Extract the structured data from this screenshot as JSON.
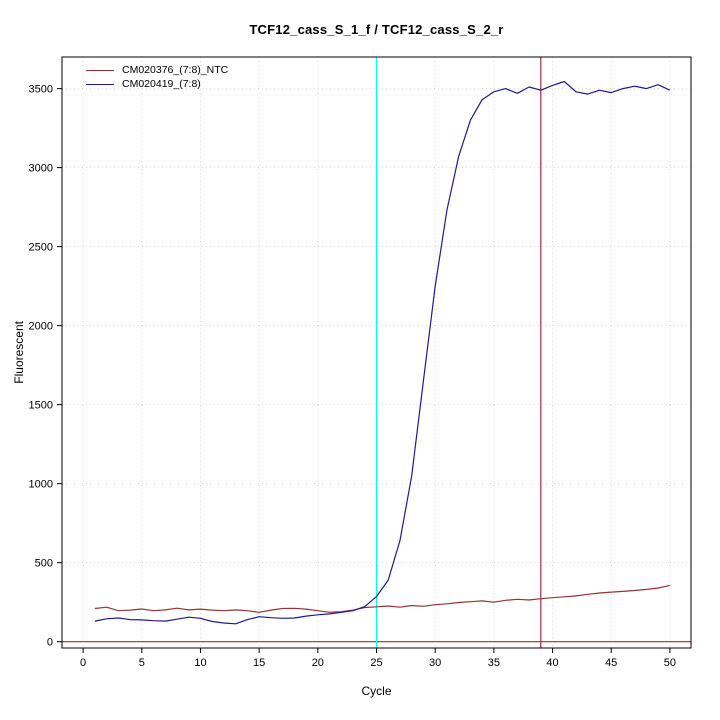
{
  "chart_data": {
    "type": "line",
    "title": "TCF12_cass_S_1_f / TCF12_cass_S_2_r",
    "xlabel": "Cycle",
    "ylabel": "Fluorescent",
    "x": [
      1,
      2,
      3,
      4,
      5,
      6,
      7,
      8,
      9,
      10,
      11,
      12,
      13,
      14,
      15,
      16,
      17,
      18,
      19,
      20,
      21,
      22,
      23,
      24,
      25,
      26,
      27,
      28,
      29,
      30,
      31,
      32,
      33,
      34,
      35,
      36,
      37,
      38,
      39,
      40,
      41,
      42,
      43,
      44,
      45,
      46,
      47,
      48,
      49,
      50
    ],
    "series": [
      {
        "name": "CM020376_(7:8)_NTC",
        "color": "#993333",
        "values": [
          210,
          218,
          196,
          200,
          207,
          196,
          201,
          212,
          201,
          206,
          200,
          196,
          201,
          196,
          186,
          200,
          210,
          211,
          206,
          196,
          186,
          190,
          200,
          216,
          221,
          226,
          218,
          229,
          224,
          234,
          240,
          248,
          253,
          258,
          250,
          262,
          268,
          264,
          272,
          278,
          284,
          290,
          300,
          308,
          314,
          318,
          324,
          331,
          340,
          356
        ]
      },
      {
        "name": "CM020419_(7:8)",
        "color": "#1c1c8c",
        "values": [
          130,
          145,
          150,
          140,
          138,
          133,
          130,
          142,
          155,
          148,
          128,
          118,
          113,
          140,
          158,
          152,
          148,
          150,
          162,
          170,
          176,
          186,
          196,
          222,
          285,
          390,
          640,
          1050,
          1650,
          2250,
          2730,
          3070,
          3300,
          3430,
          3480,
          3500,
          3470,
          3510,
          3490,
          3520,
          3545,
          3480,
          3465,
          3490,
          3475,
          3500,
          3515,
          3500,
          3525,
          3490
        ]
      }
    ],
    "xlim": [
      -1.8,
      51.8
    ],
    "ylim": [
      -40,
      3700
    ],
    "xticks": [
      0,
      5,
      10,
      15,
      20,
      25,
      30,
      35,
      40,
      45,
      50
    ],
    "yticks": [
      0,
      500,
      1000,
      1500,
      2000,
      2500,
      3000,
      3500
    ],
    "grid": true,
    "grid_color": "#d4d4d4",
    "vlines": [
      {
        "x": 25,
        "color": "#00ffff",
        "label": "threshold-cycle-line"
      },
      {
        "x": 39,
        "color": "#993333",
        "label": "cutoff-cycle-line"
      }
    ],
    "hlines": [
      {
        "y": 0,
        "color": "#993333",
        "label": "baseline"
      }
    ],
    "legend": {
      "position": "top-left",
      "entries": [
        "CM020376_(7:8)_NTC",
        "CM020419_(7:8)"
      ]
    }
  }
}
